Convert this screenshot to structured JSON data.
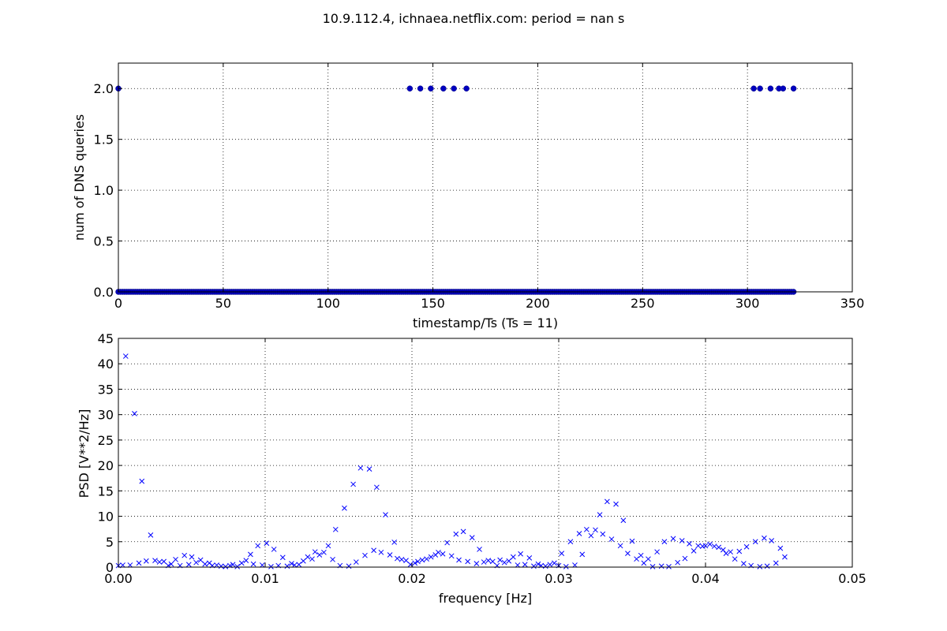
{
  "figure_title": "10.9.112.4, ichnaea.netflix.com: period = nan s",
  "chart_data": [
    {
      "type": "scatter",
      "xlabel": "timestamp/Ts (Ts = 11)",
      "ylabel": "num of DNS queries",
      "xlim": [
        0,
        350
      ],
      "ylim": [
        0,
        2.25
      ],
      "xticks": [
        0,
        50,
        100,
        150,
        200,
        250,
        300,
        350
      ],
      "yticks": [
        0.0,
        0.5,
        1.0,
        1.5,
        2.0
      ],
      "xtick_labels": [
        "0",
        "50",
        "100",
        "150",
        "200",
        "250",
        "300",
        "350"
      ],
      "ytick_labels": [
        "0.0",
        "0.5",
        "1.0",
        "1.5",
        "2.0"
      ],
      "grid": true,
      "marker": "circle",
      "color": "#0000bf",
      "points_at_two": [
        0,
        139,
        144,
        149,
        155,
        160,
        166,
        303,
        306,
        311,
        315,
        317,
        322
      ],
      "zero_range": [
        0,
        322
      ],
      "zero_step": 1
    },
    {
      "type": "scatter",
      "xlabel": "frequency [Hz]",
      "ylabel": "PSD [V**2/Hz]",
      "xlim": [
        0,
        0.05
      ],
      "ylim": [
        0,
        45
      ],
      "xticks": [
        0.0,
        0.01,
        0.02,
        0.03,
        0.04,
        0.05
      ],
      "yticks": [
        0,
        5,
        10,
        15,
        20,
        25,
        30,
        35,
        40,
        45
      ],
      "xtick_labels": [
        "0.00",
        "0.01",
        "0.02",
        "0.03",
        "0.04",
        "0.05"
      ],
      "ytick_labels": [
        "0",
        "5",
        "10",
        "15",
        "20",
        "25",
        "30",
        "35",
        "40",
        "45"
      ],
      "grid": true,
      "marker": "x",
      "color": "#0000ff",
      "points": [
        [
          0.0,
          0.3
        ],
        [
          0.0005,
          41.5
        ],
        [
          0.0011,
          30.2
        ],
        [
          0.0016,
          16.9
        ],
        [
          0.0022,
          6.3
        ],
        [
          0.0003,
          0.4
        ],
        [
          0.0008,
          0.4
        ],
        [
          0.0014,
          0.8
        ],
        [
          0.0019,
          1.2
        ],
        [
          0.0025,
          1.3
        ],
        [
          0.0028,
          1.0
        ],
        [
          0.0031,
          1.1
        ],
        [
          0.0034,
          0.3
        ],
        [
          0.0036,
          0.6
        ],
        [
          0.0039,
          1.5
        ],
        [
          0.0042,
          0.3
        ],
        [
          0.0045,
          2.3
        ],
        [
          0.0048,
          0.5
        ],
        [
          0.005,
          2.0
        ],
        [
          0.0053,
          0.9
        ],
        [
          0.0056,
          1.4
        ],
        [
          0.0059,
          0.6
        ],
        [
          0.0062,
          0.8
        ],
        [
          0.0064,
          0.3
        ],
        [
          0.0067,
          0.4
        ],
        [
          0.007,
          0.2
        ],
        [
          0.0073,
          0.1
        ],
        [
          0.0076,
          0.3
        ],
        [
          0.0078,
          0.5
        ],
        [
          0.0081,
          0.1
        ],
        [
          0.0084,
          0.8
        ],
        [
          0.0087,
          1.3
        ],
        [
          0.009,
          2.5
        ],
        [
          0.0092,
          0.6
        ],
        [
          0.0095,
          4.2
        ],
        [
          0.0098,
          0.4
        ],
        [
          0.0101,
          4.7
        ],
        [
          0.0104,
          0.1
        ],
        [
          0.0106,
          3.5
        ],
        [
          0.0109,
          0.3
        ],
        [
          0.0112,
          1.9
        ],
        [
          0.0115,
          0.2
        ],
        [
          0.0118,
          0.7
        ],
        [
          0.012,
          0.4
        ],
        [
          0.0123,
          0.5
        ],
        [
          0.0126,
          1.2
        ],
        [
          0.0129,
          2.0
        ],
        [
          0.0132,
          1.6
        ],
        [
          0.0134,
          3.0
        ],
        [
          0.0137,
          2.4
        ],
        [
          0.014,
          2.9
        ],
        [
          0.0143,
          4.2
        ],
        [
          0.0146,
          1.5
        ],
        [
          0.0148,
          7.4
        ],
        [
          0.0151,
          0.3
        ],
        [
          0.0154,
          11.6
        ],
        [
          0.0157,
          0.2
        ],
        [
          0.016,
          16.3
        ],
        [
          0.0162,
          1.0
        ],
        [
          0.0165,
          19.5
        ],
        [
          0.0168,
          2.3
        ],
        [
          0.0171,
          19.3
        ],
        [
          0.0174,
          3.3
        ],
        [
          0.0176,
          15.7
        ],
        [
          0.0179,
          2.9
        ],
        [
          0.0182,
          10.3
        ],
        [
          0.0185,
          2.4
        ],
        [
          0.0188,
          4.9
        ],
        [
          0.019,
          1.7
        ],
        [
          0.0193,
          1.5
        ],
        [
          0.0196,
          1.3
        ],
        [
          0.0199,
          0.5
        ],
        [
          0.0202,
          0.8
        ],
        [
          0.0204,
          1.1
        ],
        [
          0.0207,
          1.4
        ],
        [
          0.021,
          1.6
        ],
        [
          0.0213,
          2.0
        ],
        [
          0.0216,
          2.4
        ],
        [
          0.0218,
          2.9
        ],
        [
          0.0221,
          2.6
        ],
        [
          0.0224,
          4.8
        ],
        [
          0.0227,
          2.2
        ],
        [
          0.023,
          6.5
        ],
        [
          0.0232,
          1.4
        ],
        [
          0.0235,
          7.0
        ],
        [
          0.0238,
          1.1
        ],
        [
          0.0241,
          5.8
        ],
        [
          0.0244,
          0.7
        ],
        [
          0.0246,
          3.5
        ],
        [
          0.0249,
          1.0
        ],
        [
          0.0252,
          1.3
        ],
        [
          0.0255,
          1.1
        ],
        [
          0.0258,
          0.3
        ],
        [
          0.026,
          1.4
        ],
        [
          0.0263,
          0.9
        ],
        [
          0.0266,
          1.2
        ],
        [
          0.0269,
          2.0
        ],
        [
          0.0272,
          0.4
        ],
        [
          0.0274,
          2.6
        ],
        [
          0.0277,
          0.5
        ],
        [
          0.028,
          1.8
        ],
        [
          0.0283,
          0.2
        ],
        [
          0.0286,
          0.6
        ],
        [
          0.0288,
          0.3
        ],
        [
          0.0291,
          0.2
        ],
        [
          0.0294,
          0.5
        ],
        [
          0.0297,
          0.8
        ],
        [
          0.03,
          0.3
        ],
        [
          0.0302,
          2.7
        ],
        [
          0.0305,
          0.1
        ],
        [
          0.0308,
          5.0
        ],
        [
          0.0311,
          0.4
        ],
        [
          0.0314,
          6.6
        ],
        [
          0.0316,
          2.5
        ],
        [
          0.0319,
          7.4
        ],
        [
          0.0322,
          6.2
        ],
        [
          0.0325,
          7.3
        ],
        [
          0.0328,
          10.3
        ],
        [
          0.033,
          6.5
        ],
        [
          0.0333,
          12.9
        ],
        [
          0.0336,
          5.5
        ],
        [
          0.0339,
          12.4
        ],
        [
          0.0342,
          4.2
        ],
        [
          0.0344,
          9.2
        ],
        [
          0.0347,
          2.7
        ],
        [
          0.035,
          5.1
        ],
        [
          0.0353,
          1.6
        ],
        [
          0.0356,
          2.3
        ],
        [
          0.0358,
          0.8
        ],
        [
          0.0361,
          1.6
        ],
        [
          0.0364,
          0.1
        ],
        [
          0.0367,
          3.0
        ],
        [
          0.037,
          0.2
        ],
        [
          0.0372,
          5.0
        ],
        [
          0.0375,
          0.1
        ],
        [
          0.0378,
          5.6
        ],
        [
          0.0381,
          0.9
        ],
        [
          0.0384,
          5.2
        ],
        [
          0.0386,
          1.7
        ],
        [
          0.0389,
          4.6
        ],
        [
          0.0392,
          3.2
        ],
        [
          0.0395,
          4.2
        ],
        [
          0.0398,
          4.1
        ],
        [
          0.04,
          4.2
        ],
        [
          0.0403,
          4.5
        ],
        [
          0.0406,
          4.1
        ],
        [
          0.0409,
          3.9
        ],
        [
          0.0412,
          3.4
        ],
        [
          0.0414,
          2.7
        ],
        [
          0.0417,
          3.0
        ],
        [
          0.042,
          1.6
        ],
        [
          0.0423,
          3.1
        ],
        [
          0.0426,
          0.7
        ],
        [
          0.0428,
          4.0
        ],
        [
          0.0431,
          0.3
        ],
        [
          0.0434,
          5.0
        ],
        [
          0.0437,
          0.1
        ],
        [
          0.044,
          5.7
        ],
        [
          0.0442,
          0.2
        ],
        [
          0.0445,
          5.2
        ],
        [
          0.0448,
          0.8
        ],
        [
          0.0451,
          3.7
        ],
        [
          0.0454,
          2.0
        ]
      ]
    }
  ]
}
